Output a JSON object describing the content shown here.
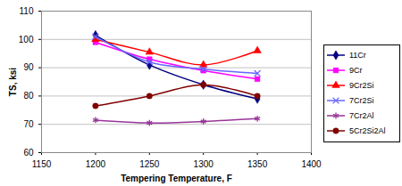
{
  "chart_data": {
    "type": "line",
    "x_label": "Tempering Temperature, F",
    "y_label": "TS, ksi",
    "x": [
      1200,
      1250,
      1300,
      1350
    ],
    "series": [
      {
        "name": "11Cr",
        "color": "#000080",
        "marker": "diamond",
        "values": [
          101.5,
          91,
          84,
          79
        ]
      },
      {
        "name": "9Cr",
        "color": "#ff00ff",
        "marker": "square",
        "values": [
          99,
          93,
          89,
          86
        ]
      },
      {
        "name": "9Cr2Si",
        "color": "#ff0000",
        "marker": "triangle",
        "values": [
          100,
          95.5,
          91,
          96
        ]
      },
      {
        "name": "7Cr2Si",
        "color": "#6666ff",
        "marker": "x",
        "values": [
          101,
          92,
          89.5,
          88
        ]
      },
      {
        "name": "7Cr2Al",
        "color": "#993399",
        "marker": "star",
        "values": [
          71.5,
          70.5,
          71,
          72
        ]
      },
      {
        "name": "5Cr2Si2Al",
        "color": "#800000",
        "marker": "circle",
        "values": [
          76.5,
          80,
          84,
          80
        ]
      }
    ],
    "xlim": [
      1150,
      1400
    ],
    "xticks": [
      1150,
      1200,
      1250,
      1300,
      1350,
      1400
    ],
    "ylim": [
      60,
      110
    ],
    "yticks": [
      60,
      70,
      80,
      90,
      100,
      110
    ],
    "grid": true,
    "legend": "right"
  }
}
